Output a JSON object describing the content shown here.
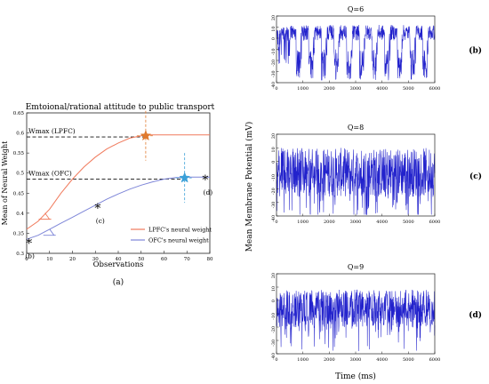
{
  "chart_data": [
    {
      "type": "line",
      "panel": "(a)",
      "title": "Emtoional/rational attitude to public transport",
      "xlabel": "Observations",
      "ylabel": "Mean of Neural Weight",
      "xlim": [
        0,
        80
      ],
      "ylim": [
        0.3,
        0.65
      ],
      "xticks": [
        "0",
        "10",
        "20",
        "30",
        "40",
        "50",
        "60",
        "70",
        "80"
      ],
      "yticks": [
        "0.3",
        "0.35",
        "0.4",
        "0.45",
        "0.5",
        "0.55",
        "0.6",
        "0.65"
      ],
      "legend_position": "bottom-right",
      "series": [
        {
          "name": "LPFC's neural weight",
          "color": "#f07a5c",
          "x": [
            0,
            5,
            10,
            15,
            20,
            25,
            30,
            35,
            40,
            45,
            50,
            52,
            60,
            70,
            80
          ],
          "y": [
            0.36,
            0.38,
            0.41,
            0.45,
            0.485,
            0.515,
            0.54,
            0.56,
            0.575,
            0.587,
            0.593,
            0.595,
            0.595,
            0.595,
            0.595
          ]
        },
        {
          "name": "OFC's neural weight",
          "color": "#7e86d8",
          "x": [
            0,
            5,
            10,
            15,
            20,
            25,
            30,
            35,
            40,
            45,
            50,
            55,
            60,
            65,
            70,
            80
          ],
          "y": [
            0.335,
            0.345,
            0.36,
            0.375,
            0.39,
            0.405,
            0.42,
            0.435,
            0.448,
            0.46,
            0.47,
            0.478,
            0.485,
            0.489,
            0.49,
            0.49
          ]
        }
      ],
      "reference_lines": [
        {
          "label": "Wmax (LPFC)",
          "y": 0.59
        },
        {
          "label": "Wmax (OFC)",
          "y": 0.485
        }
      ],
      "markers": [
        {
          "label": "(b)",
          "x": 1,
          "y": 0.332
        },
        {
          "label": "(c)",
          "x": 31,
          "y": 0.42
        },
        {
          "label": "(d)",
          "x": 78,
          "y": 0.49
        }
      ],
      "stars": [
        {
          "series": "LPFC",
          "x": 52,
          "y": 0.593,
          "color": "#e07a2e"
        },
        {
          "series": "OFC",
          "x": 69,
          "y": 0.488,
          "color": "#3aa0d8"
        }
      ]
    },
    {
      "type": "line",
      "panel": "(b)",
      "title": "Q=6",
      "xlim": [
        0,
        6000
      ],
      "ylim": [
        -40,
        20
      ],
      "xticks": [
        "0",
        "1000",
        "2000",
        "3000",
        "4000",
        "5000",
        "6000"
      ],
      "yticks": [
        "20",
        "10",
        "0",
        "-10",
        "-20",
        "-30",
        "-40"
      ],
      "color": "#2222cc",
      "pattern": "bursting"
    },
    {
      "type": "line",
      "panel": "(c)",
      "title": "Q=8",
      "xlim": [
        0,
        6000
      ],
      "ylim": [
        -40,
        20
      ],
      "xticks": [
        "0",
        "1000",
        "2000",
        "3000",
        "4000",
        "5000",
        "6000"
      ],
      "yticks": [
        "20",
        "10",
        "0",
        "-10",
        "-20",
        "-30",
        "-40"
      ],
      "color": "#2222cc",
      "pattern": "irregular"
    },
    {
      "type": "line",
      "panel": "(d)",
      "title": "Q=9",
      "xlim": [
        0,
        6000
      ],
      "ylim": [
        -40,
        20
      ],
      "xticks": [
        "0",
        "1000",
        "2000",
        "3000",
        "4000",
        "5000",
        "6000"
      ],
      "yticks": [
        "20",
        "10",
        "0",
        "-10",
        "-20",
        "-30",
        "-40"
      ],
      "color": "#2222cc",
      "pattern": "irregular-dense"
    }
  ],
  "shared": {
    "ylabel_right": "Mean Membrane Potential (mV)",
    "xlabel_right": "Time (ms)",
    "caption_a": "(a)"
  }
}
